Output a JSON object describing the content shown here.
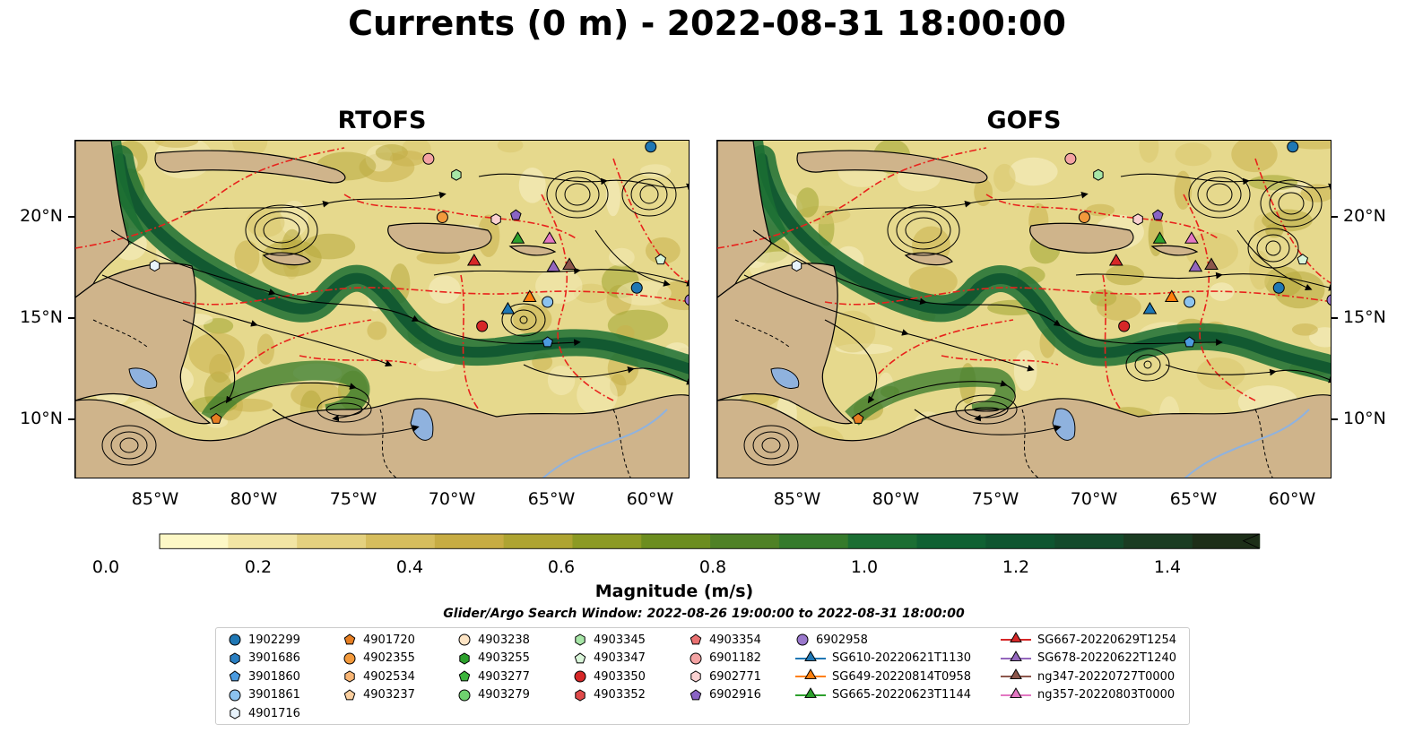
{
  "title": "Currents (0 m) - 2022-08-31 18:00:00",
  "panels": [
    {
      "title": "RTOFS"
    },
    {
      "title": "GOFS"
    }
  ],
  "lat_ticks": [
    "20°N",
    "15°N",
    "10°N"
  ],
  "lon_ticks": [
    "85°W",
    "80°W",
    "75°W",
    "70°W",
    "65°W",
    "60°W"
  ],
  "colorbar": {
    "label": "Magnitude (m/s)",
    "ticks": [
      "0.0",
      "0.2",
      "0.4",
      "0.6",
      "0.8",
      "1.0",
      "1.2",
      "1.4"
    ],
    "colors": [
      "#fdf8c6",
      "#f2e5a4",
      "#e4d17f",
      "#d6bd5d",
      "#c7ac43",
      "#aea432",
      "#8c9a24",
      "#6c8d1f",
      "#4f8126",
      "#357a2b",
      "#1b6e33",
      "#0f6133",
      "#0e5530",
      "#134a2b",
      "#1a3c22",
      "#1d2e18"
    ]
  },
  "search_window": "Glider/Argo Search Window: 2022-08-26 19:00:00 to 2022-08-31 18:00:00",
  "legend": {
    "columns": [
      [
        {
          "label": "1902299",
          "marker": "circle",
          "color": "#1f77b4"
        },
        {
          "label": "3901686",
          "marker": "hexagon",
          "color": "#2a7fc2"
        },
        {
          "label": "3901860",
          "marker": "pentagon",
          "color": "#4c9be0"
        },
        {
          "label": "3901861",
          "marker": "circle",
          "color": "#8cc3ef"
        },
        {
          "label": "4901716",
          "marker": "hexagon",
          "color": "#e8f3fc"
        }
      ],
      [
        {
          "label": "4901720",
          "marker": "pentagon",
          "color": "#e67e22"
        },
        {
          "label": "4902355",
          "marker": "circle",
          "color": "#f39a3c"
        },
        {
          "label": "4902534",
          "marker": "hexagon",
          "color": "#f8b574"
        },
        {
          "label": "4903237",
          "marker": "pentagon",
          "color": "#fbcf9f"
        }
      ],
      [
        {
          "label": "4903238",
          "marker": "circle",
          "color": "#fde4c4"
        },
        {
          "label": "4903255",
          "marker": "hexagon",
          "color": "#2ca02c"
        },
        {
          "label": "4903277",
          "marker": "pentagon",
          "color": "#3cb43c"
        },
        {
          "label": "4903279",
          "marker": "circle",
          "color": "#6fd16f"
        }
      ],
      [
        {
          "label": "4903345",
          "marker": "hexagon",
          "color": "#a7e6a7"
        },
        {
          "label": "4903347",
          "marker": "pentagon",
          "color": "#d9f5d9"
        },
        {
          "label": "4903350",
          "marker": "circle",
          "color": "#d62728"
        },
        {
          "label": "4903352",
          "marker": "hexagon",
          "color": "#e04a4a"
        }
      ],
      [
        {
          "label": "4903354",
          "marker": "pentagon",
          "color": "#ea7070"
        },
        {
          "label": "6901182",
          "marker": "circle",
          "color": "#f4a3a3"
        },
        {
          "label": "6902771",
          "marker": "hexagon",
          "color": "#fad1d1"
        },
        {
          "label": "6902916",
          "marker": "pentagon",
          "color": "#8a64c4"
        }
      ],
      [
        {
          "label": "6902958",
          "marker": "circle",
          "color": "#9a78cc"
        },
        {
          "label": "SG610-20220621T1130",
          "marker": "triangle",
          "color": "#1f77b4"
        },
        {
          "label": "SG649-20220814T0958",
          "marker": "triangle",
          "color": "#ff7f0e"
        },
        {
          "label": "SG665-20220623T1144",
          "marker": "triangle",
          "color": "#2ca02c"
        }
      ],
      [
        {
          "label": "SG667-20220629T1254",
          "marker": "triangle",
          "color": "#d62728"
        },
        {
          "label": "SG678-20220622T1240",
          "marker": "triangle",
          "color": "#9467bd"
        },
        {
          "label": "ng347-20220727T0000",
          "marker": "triangle",
          "color": "#8c564b"
        },
        {
          "label": "ng357-20220803T0000",
          "marker": "triangle",
          "color": "#e377c2"
        }
      ]
    ]
  }
}
